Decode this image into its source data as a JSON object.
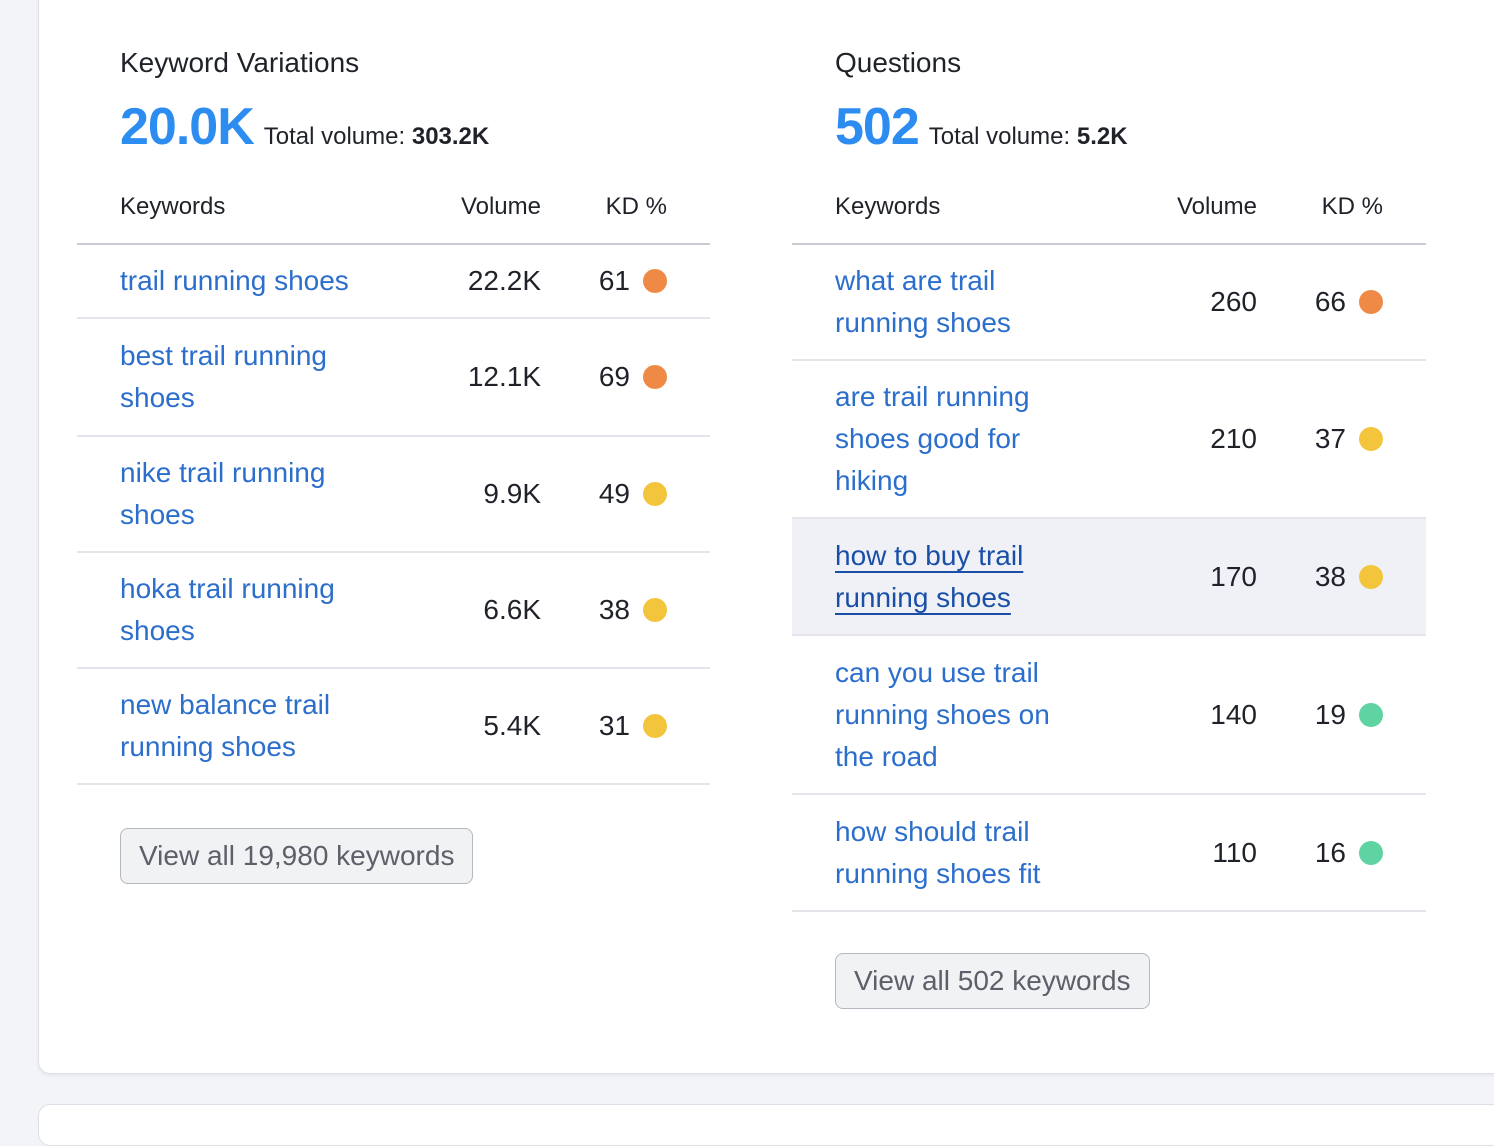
{
  "colors": {
    "accent": "#2d8cf0",
    "link": "#2c6ecb",
    "kd_orange": "#ee8a45",
    "kd_yellow": "#f3c53d",
    "kd_green": "#5fd3a2"
  },
  "variations": {
    "title": "Keyword Variations",
    "count": "20.0K",
    "total_label": "Total volume:",
    "total_value": "303.2K",
    "col_keywords": "Keywords",
    "col_volume": "Volume",
    "col_kd": "KD %",
    "rows": [
      {
        "keyword": "trail running shoes",
        "volume": "22.2K",
        "kd": "61",
        "kd_level": "orange"
      },
      {
        "keyword": "best trail running shoes",
        "volume": "12.1K",
        "kd": "69",
        "kd_level": "orange"
      },
      {
        "keyword": "nike trail running shoes",
        "volume": "9.9K",
        "kd": "49",
        "kd_level": "yellow"
      },
      {
        "keyword": "hoka trail running shoes",
        "volume": "6.6K",
        "kd": "38",
        "kd_level": "yellow"
      },
      {
        "keyword": "new balance trail running shoes",
        "volume": "5.4K",
        "kd": "31",
        "kd_level": "yellow"
      }
    ],
    "view_all": "View all 19,980 keywords"
  },
  "questions": {
    "title": "Questions",
    "count": "502",
    "total_label": "Total volume:",
    "total_value": "5.2K",
    "col_keywords": "Keywords",
    "col_volume": "Volume",
    "col_kd": "KD %",
    "rows": [
      {
        "keyword": "what are trail running shoes",
        "volume": "260",
        "kd": "66",
        "kd_level": "orange"
      },
      {
        "keyword": "are trail running shoes good for hiking",
        "volume": "210",
        "kd": "37",
        "kd_level": "yellow"
      },
      {
        "keyword": "how to buy trail running shoes",
        "volume": "170",
        "kd": "38",
        "kd_level": "yellow"
      },
      {
        "keyword": "can you use trail running shoes on the road",
        "volume": "140",
        "kd": "19",
        "kd_level": "green"
      },
      {
        "keyword": "how should trail running shoes fit",
        "volume": "110",
        "kd": "16",
        "kd_level": "green"
      }
    ],
    "view_all": "View all 502 keywords"
  }
}
